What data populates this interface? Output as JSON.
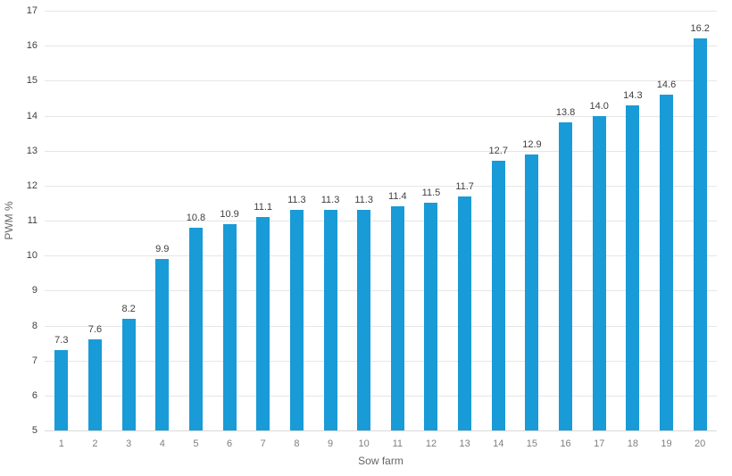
{
  "chart_data": {
    "type": "bar",
    "title": "",
    "xlabel": "Sow farm",
    "ylabel": "PWM %",
    "categories": [
      "1",
      "2",
      "3",
      "4",
      "5",
      "6",
      "7",
      "8",
      "9",
      "10",
      "11",
      "12",
      "13",
      "14",
      "15",
      "16",
      "17",
      "18",
      "19",
      "20"
    ],
    "values": [
      7.3,
      7.6,
      8.2,
      9.9,
      10.8,
      10.9,
      11.1,
      11.3,
      11.3,
      11.3,
      11.4,
      11.5,
      11.7,
      12.7,
      12.9,
      13.8,
      14.0,
      14.3,
      14.6,
      16.2
    ],
    "value_labels": [
      "7.3",
      "7.6",
      "8.2",
      "9.9",
      "10.8",
      "10.9",
      "11.1",
      "11.3",
      "11.3",
      "11.3",
      "11.4",
      "11.5",
      "11.7",
      "12.7",
      "12.9",
      "13.8",
      "14.0",
      "14.3",
      "14.6",
      "16.2"
    ],
    "ylim": [
      5,
      17
    ],
    "yticks": [
      5,
      6,
      7,
      8,
      9,
      10,
      11,
      12,
      13,
      14,
      15,
      16,
      17
    ],
    "grid": true,
    "legend": "none",
    "colors": {
      "bar": "#199bd7",
      "gridline": "#e6e6e6",
      "axis_line": "#d9d9d9",
      "y_tick_text": "#404040",
      "x_tick_text": "#7f7f7f",
      "value_label_text": "#404040",
      "axis_title_text": "#666666",
      "background": "#ffffff"
    }
  }
}
